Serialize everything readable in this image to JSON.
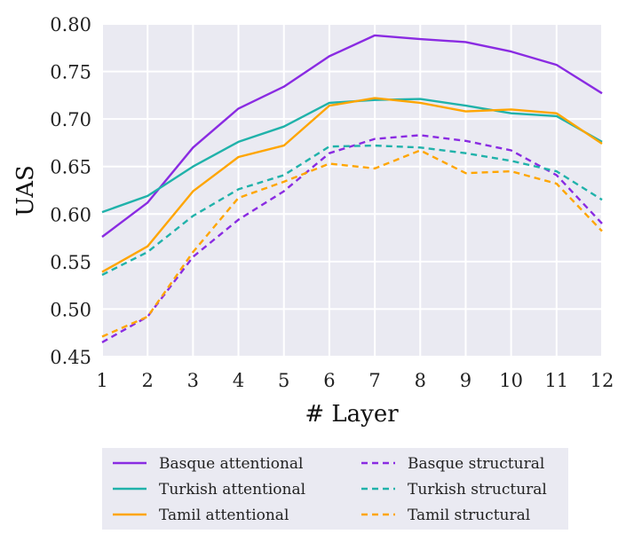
{
  "chart_data": {
    "type": "line",
    "title": "",
    "xlabel": "# Layer",
    "ylabel": "UAS",
    "x": [
      1,
      2,
      3,
      4,
      5,
      6,
      7,
      8,
      9,
      10,
      11,
      12
    ],
    "xlim": [
      1,
      12
    ],
    "ylim": [
      0.45,
      0.8
    ],
    "yticks": [
      "0.45",
      "0.50",
      "0.55",
      "0.60",
      "0.65",
      "0.70",
      "0.75",
      "0.80"
    ],
    "xticks": [
      "1",
      "2",
      "3",
      "4",
      "5",
      "6",
      "7",
      "8",
      "9",
      "10",
      "11",
      "12"
    ],
    "grid": true,
    "legend_position": "bottom",
    "series": [
      {
        "name": "Basque attentional",
        "color": "#8a2be2",
        "style": "solid",
        "values": [
          0.576,
          0.612,
          0.67,
          0.711,
          0.734,
          0.766,
          0.788,
          0.784,
          0.781,
          0.771,
          0.757,
          0.727
        ]
      },
      {
        "name": "Turkish attentional",
        "color": "#20b2aa",
        "style": "solid",
        "values": [
          0.602,
          0.619,
          0.65,
          0.676,
          0.692,
          0.717,
          0.72,
          0.721,
          0.714,
          0.706,
          0.703,
          0.676
        ]
      },
      {
        "name": "Tamil attentional",
        "color": "#ffa500",
        "style": "solid",
        "values": [
          0.539,
          0.566,
          0.624,
          0.66,
          0.672,
          0.714,
          0.722,
          0.717,
          0.708,
          0.71,
          0.706,
          0.674
        ]
      },
      {
        "name": "Basque structural",
        "color": "#8a2be2",
        "style": "dashed",
        "values": [
          0.465,
          0.492,
          0.555,
          0.594,
          0.624,
          0.664,
          0.679,
          0.683,
          0.677,
          0.667,
          0.641,
          0.59
        ]
      },
      {
        "name": "Turkish structural",
        "color": "#20b2aa",
        "style": "dashed",
        "values": [
          0.536,
          0.56,
          0.598,
          0.626,
          0.641,
          0.671,
          0.672,
          0.67,
          0.664,
          0.656,
          0.645,
          0.615
        ]
      },
      {
        "name": "Tamil structural",
        "color": "#ffa500",
        "style": "dashed",
        "values": [
          0.471,
          0.492,
          0.56,
          0.617,
          0.634,
          0.653,
          0.648,
          0.667,
          0.643,
          0.645,
          0.632,
          0.582
        ]
      }
    ]
  }
}
